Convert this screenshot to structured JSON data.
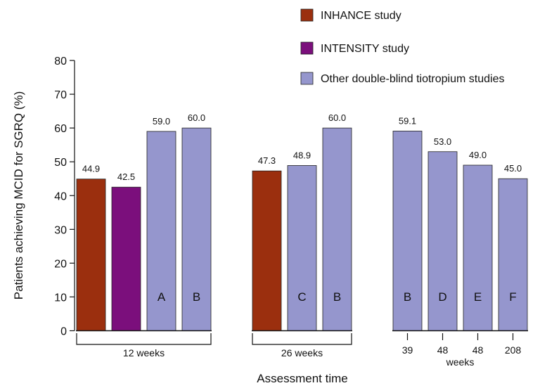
{
  "chart_data": {
    "type": "bar",
    "ylabel": "Patients achieving MCID for SGRQ (%)",
    "xlabel": "Assessment time",
    "ylim": [
      0,
      80
    ],
    "yticks": [
      0,
      10,
      20,
      30,
      40,
      50,
      60,
      70,
      80
    ],
    "grid": false,
    "legend_position": "top-right",
    "legend": [
      {
        "label": "INHANCE study",
        "color": "#9b2f0e"
      },
      {
        "label": "INTENSITY study",
        "color": "#7b0f7c"
      },
      {
        "label": "Other double-blind tiotropium studies",
        "color": "#9596cd"
      }
    ],
    "groups": [
      {
        "label": "12 weeks",
        "bracket": true,
        "bars": [
          {
            "value": 44.9,
            "value_label": "44.9",
            "series": 0,
            "letter": ""
          },
          {
            "value": 42.5,
            "value_label": "42.5",
            "series": 1,
            "letter": ""
          },
          {
            "value": 59.0,
            "value_label": "59.0",
            "series": 2,
            "letter": "A"
          },
          {
            "value": 60.0,
            "value_label": "60.0",
            "series": 2,
            "letter": "B"
          }
        ]
      },
      {
        "label": "26 weeks",
        "bracket": true,
        "bars": [
          {
            "value": 47.3,
            "value_label": "47.3",
            "series": 0,
            "letter": ""
          },
          {
            "value": 48.9,
            "value_label": "48.9",
            "series": 2,
            "letter": "C"
          },
          {
            "value": 60.0,
            "value_label": "60.0",
            "series": 2,
            "letter": "B"
          }
        ]
      },
      {
        "label": "weeks",
        "bracket": false,
        "bars": [
          {
            "value": 59.1,
            "value_label": "59.1",
            "series": 2,
            "letter": "B",
            "tick_label": "39"
          },
          {
            "value": 53.0,
            "value_label": "53.0",
            "series": 2,
            "letter": "D",
            "tick_label": "48"
          },
          {
            "value": 49.0,
            "value_label": "49.0",
            "series": 2,
            "letter": "E",
            "tick_label": "48"
          },
          {
            "value": 45.0,
            "value_label": "45.0",
            "series": 2,
            "letter": "F",
            "tick_label": "208"
          }
        ]
      }
    ]
  }
}
